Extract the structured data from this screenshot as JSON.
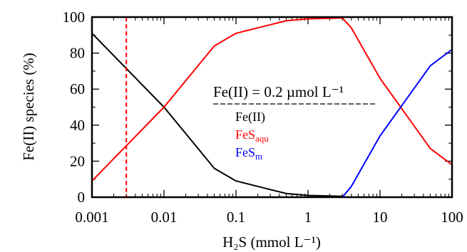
{
  "chart_data": {
    "type": "line",
    "xscale": "log",
    "xlim": [
      0.001,
      100
    ],
    "ylim": [
      0,
      100
    ],
    "xticks": [
      0.001,
      0.01,
      0.1,
      1,
      10,
      100
    ],
    "xtick_labels": [
      "0.001",
      "0.01",
      "0.1",
      "1",
      "10",
      "100"
    ],
    "yticks": [
      0,
      20,
      40,
      60,
      80,
      100
    ],
    "ytick_labels": [
      "0",
      "20",
      "40",
      "60",
      "80",
      "100"
    ],
    "xlabel": "H₂S (mmol L⁻¹)",
    "ylabel": "Fe(II) species (%)",
    "legend_title": "Fe(II) = 0.2 µmol L⁻¹",
    "legend_position": "center-right",
    "vline": {
      "x": 0.003,
      "color": "#ff0000",
      "style": "dashed"
    },
    "series": [
      {
        "name": "Fe(II)",
        "color": "#000000",
        "x": [
          0.001,
          0.01,
          0.05,
          0.1,
          0.5,
          1,
          3
        ],
        "y": [
          91,
          50,
          16,
          9,
          2,
          1,
          0.5
        ]
      },
      {
        "name": "FeSaqu",
        "color": "#ff0000",
        "x": [
          0.001,
          0.01,
          0.05,
          0.1,
          0.5,
          1,
          3,
          4,
          10,
          50,
          100
        ],
        "y": [
          9,
          50,
          84,
          91,
          98,
          99,
          99.5,
          94,
          66,
          27,
          18
        ]
      },
      {
        "name": "FeSm",
        "color": "#0000ff",
        "x": [
          0.001,
          3,
          4,
          10,
          50,
          100
        ],
        "y": [
          0,
          0,
          6,
          34,
          73,
          82
        ]
      }
    ]
  },
  "legend_entries": [
    {
      "main": "Fe(II)",
      "sub": "",
      "color": "#000000"
    },
    {
      "main": "FeS",
      "sub": "aqu",
      "color": "#ff0000"
    },
    {
      "main": "FeS",
      "sub": "m",
      "color": "#0000ff"
    }
  ]
}
